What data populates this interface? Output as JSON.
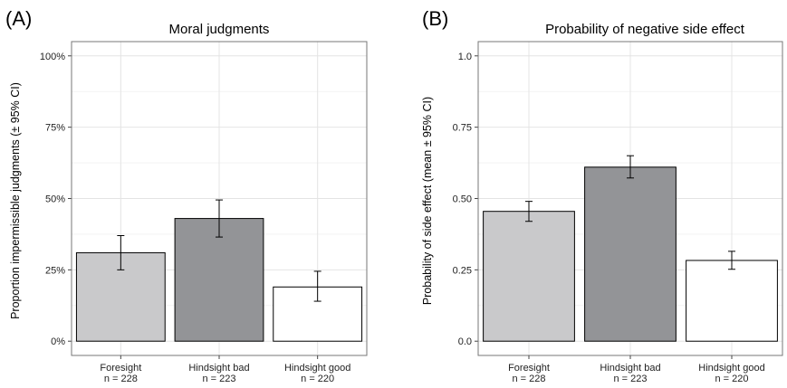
{
  "chart_data": [
    {
      "type": "bar",
      "panel_label": "(A)",
      "title": "Moral judgments",
      "ylabel": "Proportion impermissible judgments  (± 95% CI)",
      "ylim": [
        0,
        1
      ],
      "yticks": [
        0,
        0.25,
        0.5,
        0.75,
        1.0
      ],
      "ytick_labels": [
        "0%",
        "25%",
        "50%",
        "75%",
        "100%"
      ],
      "categories": [
        "Foresight",
        "Hindsight bad",
        "Hindsight good"
      ],
      "sample_sizes": [
        "n = 228",
        "n = 223",
        "n = 220"
      ],
      "values": [
        0.31,
        0.43,
        0.19
      ],
      "ci_low": [
        0.25,
        0.365,
        0.14
      ],
      "ci_high": [
        0.37,
        0.495,
        0.245
      ],
      "colors": [
        "#c9c9cb",
        "#939497",
        "#ffffff"
      ],
      "grid": true
    },
    {
      "type": "bar",
      "panel_label": "(B)",
      "title": "Probability of negative side effect",
      "ylabel": "Probability of side effect (mean ± 95% CI)",
      "ylim": [
        0,
        1
      ],
      "yticks": [
        0,
        0.25,
        0.5,
        0.75,
        1.0
      ],
      "ytick_labels": [
        "0.0",
        "0.25",
        "0.50",
        "0.75",
        "1.0"
      ],
      "categories": [
        "Foresight",
        "Hindsight bad",
        "Hindsight good"
      ],
      "sample_sizes": [
        "n = 228",
        "n = 223",
        "n = 220"
      ],
      "values": [
        0.455,
        0.61,
        0.283
      ],
      "ci_low": [
        0.42,
        0.572,
        0.252
      ],
      "ci_high": [
        0.49,
        0.65,
        0.315
      ],
      "colors": [
        "#c9c9cb",
        "#939497",
        "#ffffff"
      ],
      "grid": true
    }
  ]
}
